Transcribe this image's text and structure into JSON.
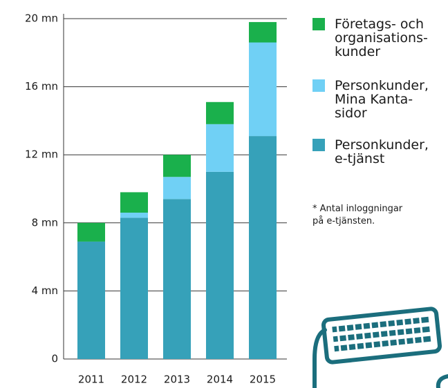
{
  "chart_data": {
    "type": "stacked-bar",
    "categories": [
      "2011",
      "2012",
      "2013",
      "2014",
      "2015"
    ],
    "series": [
      {
        "name": "Personkunder,\ne-tjänst",
        "color": "#36a1b9",
        "values": [
          6.9,
          8.3,
          9.4,
          11.0,
          13.1
        ]
      },
      {
        "name": "Personkunder,\nMina Kanta-\nsidor",
        "color": "#70d0f5",
        "values": [
          0,
          0.3,
          1.3,
          2.8,
          5.5
        ]
      },
      {
        "name": "Företags- och\norganisations-\nkunder",
        "color": "#1ab04c",
        "values": [
          1.1,
          1.2,
          1.3,
          1.3,
          1.2
        ]
      }
    ],
    "ylim": [
      0,
      20
    ],
    "yticks": [
      0,
      {
        "value": 4,
        "label": "4 mn"
      },
      {
        "value": 8,
        "label": "8 mn"
      },
      {
        "value": 12,
        "label": "12 mn"
      },
      {
        "value": 16,
        "label": "16 mn"
      },
      {
        "value": 20,
        "label": "20 mn"
      }
    ],
    "grid": true,
    "note": "* Antal inloggningar\npå e-tjänsten."
  }
}
